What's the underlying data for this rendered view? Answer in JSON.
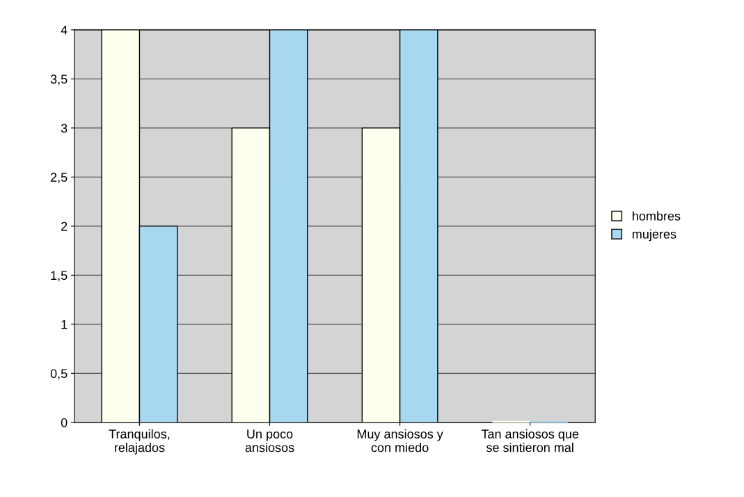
{
  "chart_data": {
    "type": "bar",
    "categories": [
      "Tranquilos,\nrelajados",
      "Un poco\nansiosos",
      "Muy ansiosos y\ncon miedo",
      "Tan ansiosos que\nse sintieron mal"
    ],
    "series": [
      {
        "name": "hombres",
        "color": "#fffff0",
        "values": [
          4,
          3,
          3,
          0
        ]
      },
      {
        "name": "mujeres",
        "color": "#a8d8ef",
        "values": [
          2,
          4,
          4,
          0
        ]
      }
    ],
    "ylim": [
      0,
      4
    ],
    "yticks": [
      0,
      {
        "value": 0.5,
        "label": "0,5"
      },
      1,
      {
        "value": 1.5,
        "label": "1,5"
      },
      2,
      {
        "value": 2.5,
        "label": "2,5"
      },
      3,
      {
        "value": 3.5,
        "label": "3,5"
      },
      4
    ],
    "grid": "y",
    "legend": "right"
  }
}
